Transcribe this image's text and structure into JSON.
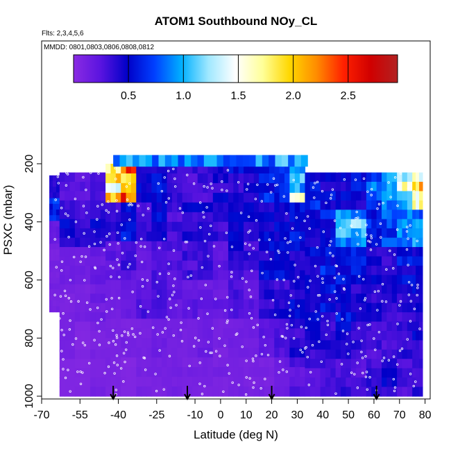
{
  "chart_data": {
    "type": "heatmap",
    "title": "ATOM1 Southbound NOy_CL",
    "flights_note": "Flts: 2,3,4,5,6",
    "dates_note": "MMDD: 0801,0803,0806,0808,0812",
    "xlabel": "Latitude (deg N)",
    "ylabel": "PSXC (mbar)",
    "xlim": [
      -70,
      82
    ],
    "ylim": [
      1010,
      0
    ],
    "x_ticks": [
      -70,
      -55,
      -40,
      -25,
      -10,
      0,
      10,
      20,
      30,
      40,
      50,
      60,
      70,
      80
    ],
    "x_tick_labels": [
      "-70",
      "-55",
      "-40",
      "-25",
      "-10",
      "0",
      "10",
      "20",
      "30",
      "40",
      "50",
      "60",
      "70",
      "80"
    ],
    "y_ticks": [
      200,
      400,
      600,
      800,
      1000
    ],
    "y_tick_labels": [
      "200",
      "400",
      "600",
      "800",
      "1000"
    ],
    "colorbar": {
      "min": 0,
      "max": 2.95,
      "ticks": [
        0.5,
        1.0,
        1.5,
        2.0,
        2.5
      ],
      "tick_labels": [
        "0.5",
        "1.0",
        "1.5",
        "2.0",
        "2.5"
      ],
      "colors": [
        "#8a2be2",
        "#5a14e0",
        "#0000c8",
        "#0040ff",
        "#00b0ff",
        "#a0e8ff",
        "#ffffff",
        "#ffff99",
        "#ffd700",
        "#ff8c00",
        "#ff2000",
        "#d00000",
        "#b22222"
      ]
    },
    "flight_markers_lat": [
      -42,
      -13,
      20,
      61
    ],
    "columns": [
      {
        "lat": [
          -67,
          -63
        ],
        "top": 240,
        "bottom": 710,
        "values": [
          0.4,
          0.7,
          0.2,
          0.1,
          0.1,
          0.1
        ]
      },
      {
        "lat": [
          -63,
          -57
        ],
        "top": 230,
        "bottom": 1000,
        "values": [
          0.3,
          0.5,
          0.15,
          0.1,
          0.1,
          0.05
        ]
      },
      {
        "lat": [
          -57,
          -51
        ],
        "top": 230,
        "bottom": 1000,
        "values": [
          0.25,
          0.35,
          0.15,
          0.1,
          0.05,
          0.05
        ]
      },
      {
        "lat": [
          -51,
          -45
        ],
        "top": 230,
        "bottom": 1000,
        "values": [
          0.3,
          0.45,
          0.2,
          0.15,
          0.1,
          0.1
        ]
      },
      {
        "lat": [
          -45,
          -39
        ],
        "top": 200,
        "bottom": 1000,
        "values": [
          1.8,
          0.4,
          0.2,
          0.15,
          0.1,
          0.1
        ]
      },
      {
        "lat": [
          -39,
          -33
        ],
        "top": 200,
        "bottom": 1000,
        "values": [
          1.9,
          0.5,
          0.3,
          0.2,
          0.1,
          0.05
        ]
      },
      {
        "lat": [
          -33,
          -27
        ],
        "top": 200,
        "bottom": 1000,
        "values": [
          0.4,
          0.35,
          0.2,
          0.25,
          0.1,
          0.1
        ]
      },
      {
        "lat": [
          -27,
          -21
        ],
        "top": 200,
        "bottom": 1000,
        "values": [
          0.5,
          0.45,
          0.25,
          0.35,
          0.15,
          0.1
        ]
      },
      {
        "lat": [
          -21,
          -15
        ],
        "top": 200,
        "bottom": 1000,
        "values": [
          0.35,
          0.3,
          0.25,
          0.2,
          0.15,
          0.1
        ]
      },
      {
        "lat": [
          -15,
          -9
        ],
        "top": 200,
        "bottom": 1000,
        "values": [
          0.3,
          0.4,
          0.3,
          0.2,
          0.1,
          0.1
        ]
      },
      {
        "lat": [
          -9,
          -3
        ],
        "top": 200,
        "bottom": 1000,
        "values": [
          0.35,
          0.45,
          0.3,
          0.2,
          0.15,
          0.1
        ]
      },
      {
        "lat": [
          -3,
          3
        ],
        "top": 200,
        "bottom": 1000,
        "values": [
          0.4,
          0.35,
          0.25,
          0.2,
          0.1,
          0.1
        ]
      },
      {
        "lat": [
          3,
          9
        ],
        "top": 200,
        "bottom": 1000,
        "values": [
          0.45,
          0.5,
          0.4,
          0.25,
          0.15,
          0.1
        ]
      },
      {
        "lat": [
          9,
          15
        ],
        "top": 200,
        "bottom": 1000,
        "values": [
          0.5,
          0.4,
          0.3,
          0.2,
          0.15,
          0.1
        ]
      },
      {
        "lat": [
          15,
          21
        ],
        "top": 200,
        "bottom": 1000,
        "values": [
          0.55,
          0.5,
          0.45,
          0.35,
          0.2,
          0.1
        ]
      },
      {
        "lat": [
          21,
          27
        ],
        "top": 200,
        "bottom": 1000,
        "values": [
          0.6,
          0.55,
          0.5,
          0.4,
          0.25,
          0.15
        ]
      },
      {
        "lat": [
          27,
          33
        ],
        "top": 200,
        "bottom": 1000,
        "values": [
          1.2,
          0.55,
          0.5,
          0.45,
          0.35,
          0.25
        ]
      },
      {
        "lat": [
          33,
          39
        ],
        "top": 230,
        "bottom": 1000,
        "values": [
          0.6,
          0.5,
          0.55,
          0.45,
          0.4,
          0.3
        ]
      },
      {
        "lat": [
          39,
          45
        ],
        "top": 230,
        "bottom": 1000,
        "values": [
          0.55,
          0.6,
          0.55,
          0.5,
          0.35,
          0.3
        ]
      },
      {
        "lat": [
          45,
          51
        ],
        "top": 230,
        "bottom": 1000,
        "values": [
          0.5,
          0.9,
          0.5,
          0.5,
          0.45,
          0.35
        ]
      },
      {
        "lat": [
          51,
          57
        ],
        "top": 230,
        "bottom": 1000,
        "values": [
          0.55,
          1.0,
          0.55,
          0.45,
          0.35,
          0.3
        ]
      },
      {
        "lat": [
          57,
          63
        ],
        "top": 230,
        "bottom": 1000,
        "values": [
          0.7,
          0.6,
          0.45,
          0.4,
          0.3,
          0.35
        ]
      },
      {
        "lat": [
          63,
          69
        ],
        "top": 230,
        "bottom": 1000,
        "values": [
          0.9,
          0.7,
          0.45,
          0.35,
          0.3,
          0.4
        ]
      },
      {
        "lat": [
          69,
          75
        ],
        "top": 230,
        "bottom": 1000,
        "values": [
          1.3,
          0.8,
          0.5,
          0.4,
          0.35,
          0.3
        ]
      },
      {
        "lat": [
          75,
          79
        ],
        "top": 230,
        "bottom": 1000,
        "values": [
          1.9,
          0.85,
          0.55,
          0.45,
          0.4,
          0.35
        ]
      }
    ]
  }
}
